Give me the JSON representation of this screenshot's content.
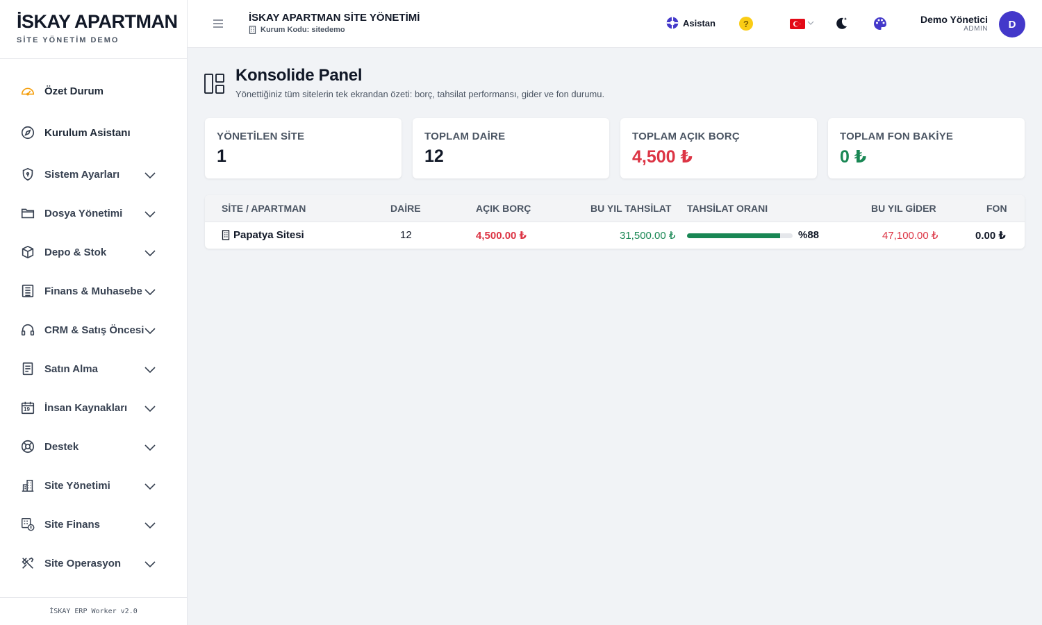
{
  "brand": {
    "title": "İSKAY APARTMAN",
    "subtitle": "SİTE YÖNETİM DEMO"
  },
  "sidebar": {
    "items": [
      {
        "label": "Özet Durum",
        "icon": "speedometer-icon"
      },
      {
        "label": "Kurulum Asistanı",
        "icon": "compass-icon"
      },
      {
        "label": "Sistem Ayarları",
        "icon": "shield-icon"
      },
      {
        "label": "Dosya Yönetimi",
        "icon": "folder-icon"
      },
      {
        "label": "Depo & Stok",
        "icon": "box-icon"
      },
      {
        "label": "Finans & Muhasebe",
        "icon": "ledger-icon"
      },
      {
        "label": "CRM & Satış Öncesi",
        "icon": "headset-icon"
      },
      {
        "label": "Satın Alma",
        "icon": "document-icon"
      },
      {
        "label": "İnsan Kaynakları",
        "icon": "calendar-icon",
        "calendar_day": "19"
      },
      {
        "label": "Destek",
        "icon": "lifebuoy-icon"
      },
      {
        "label": "Site Yönetimi",
        "icon": "buildings-icon"
      },
      {
        "label": "Site Finans",
        "icon": "building-money-icon"
      },
      {
        "label": "Site Operasyon",
        "icon": "tools-icon"
      }
    ],
    "footer": "İSKAY ERP Worker v2.0"
  },
  "header": {
    "title": "İSKAY APARTMAN SİTE YÖNETİMİ",
    "org_code": "Kurum Kodu: sitedemo",
    "assistant_label": "Asistan",
    "help_label": "?",
    "user_name": "Demo Yönetici",
    "user_role": "ADMIN",
    "avatar_initial": "D"
  },
  "page": {
    "title": "Konsolide Panel",
    "subtitle": "Yönettiğiniz tüm sitelerin tek ekrandan özeti: borç, tahsilat performansı, gider ve fon durumu."
  },
  "cards": [
    {
      "label": "YÖNETİLEN SİTE",
      "value": "1"
    },
    {
      "label": "TOPLAM DAİRE",
      "value": "12"
    },
    {
      "label": "TOPLAM AÇIK BORÇ",
      "value": "4,500 ₺"
    },
    {
      "label": "TOPLAM FON BAKİYE",
      "value": "0 ₺"
    }
  ],
  "table": {
    "headers": [
      "SİTE / APARTMAN",
      "DAİRE",
      "AÇIK BORÇ",
      "BU YIL TAHSİLAT",
      "TAHSİLAT ORANI",
      "BU YIL GİDER",
      "FON"
    ],
    "rows": [
      {
        "site": "Papatya Sitesi",
        "daire": "12",
        "acik_borc": "4,500.00 ₺",
        "tahsilat": "31,500.00 ₺",
        "oran_label": "%88",
        "oran_percent": 88,
        "gider": "47,100.00 ₺",
        "fon": "0.00 ₺"
      }
    ]
  },
  "colors": {
    "accent": "#4338ca",
    "danger": "#dc3545",
    "success": "#198754",
    "warning": "#facc15",
    "icon_highlight": "#f59e0b"
  }
}
